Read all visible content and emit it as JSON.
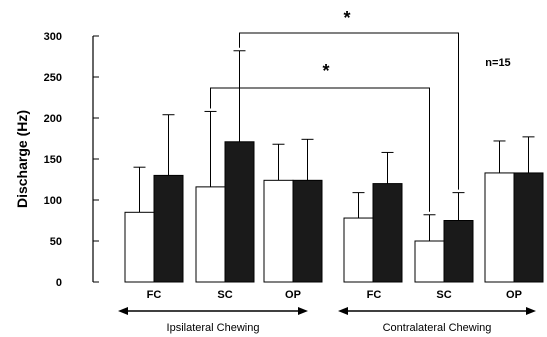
{
  "chart_data": {
    "type": "bar",
    "ylabel": "Discharge (Hz)",
    "ylim": [
      0,
      300
    ],
    "yticks": [
      0,
      50,
      100,
      150,
      200,
      250,
      300
    ],
    "groups": [
      {
        "label": "Ipsilateral Chewing",
        "categories": [
          "FC",
          "SC",
          "OP"
        ]
      },
      {
        "label": "Contralateral Chewing",
        "categories": [
          "FC",
          "SC",
          "OP"
        ]
      }
    ],
    "series": [
      {
        "fill": "#ffffff",
        "values": [
          85,
          116,
          124,
          78,
          50,
          133
        ],
        "errors": [
          55,
          92,
          44,
          31,
          32,
          39
        ]
      },
      {
        "fill": "#1a1a1a",
        "values": [
          130,
          171,
          124,
          120,
          75,
          133
        ],
        "errors": [
          74,
          111,
          50,
          38,
          34,
          44
        ]
      }
    ],
    "annotations": {
      "note": "n=15",
      "significance": [
        "*",
        "*"
      ]
    }
  }
}
